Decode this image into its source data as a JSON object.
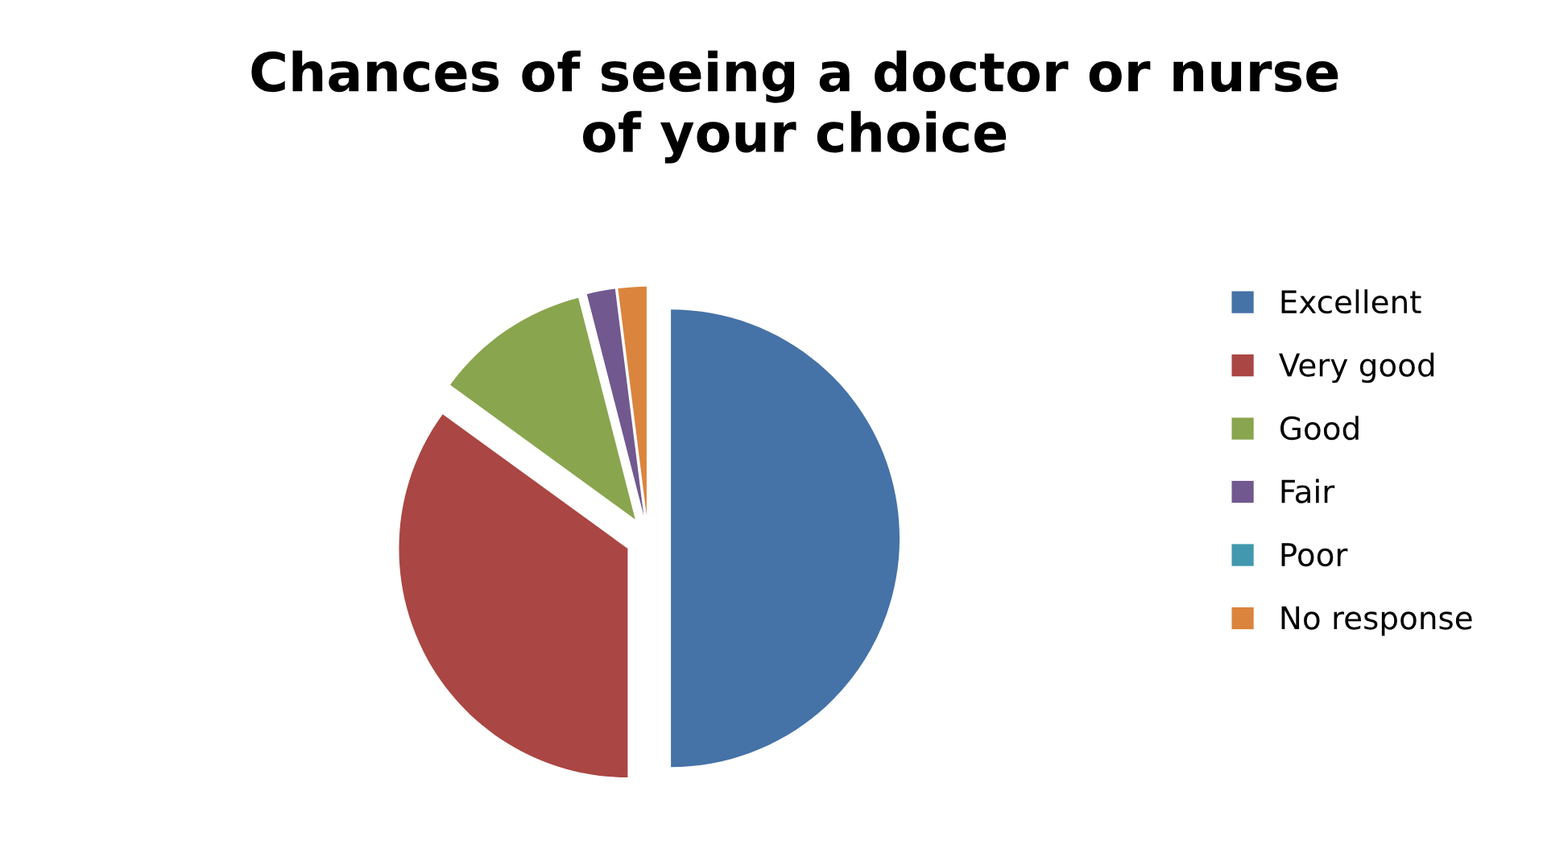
{
  "chart_data": {
    "type": "pie",
    "title": "Chances of seeing a doctor or nurse\nof your choice",
    "categories": [
      "Excellent",
      "Very good",
      "Good",
      "Fair",
      "Poor",
      "No response"
    ],
    "values": [
      50,
      35,
      11,
      2,
      0,
      2
    ],
    "colors": [
      "#4572a7",
      "#aa4643",
      "#89a54e",
      "#71588f",
      "#4198af",
      "#db843d"
    ],
    "legend": "right"
  }
}
